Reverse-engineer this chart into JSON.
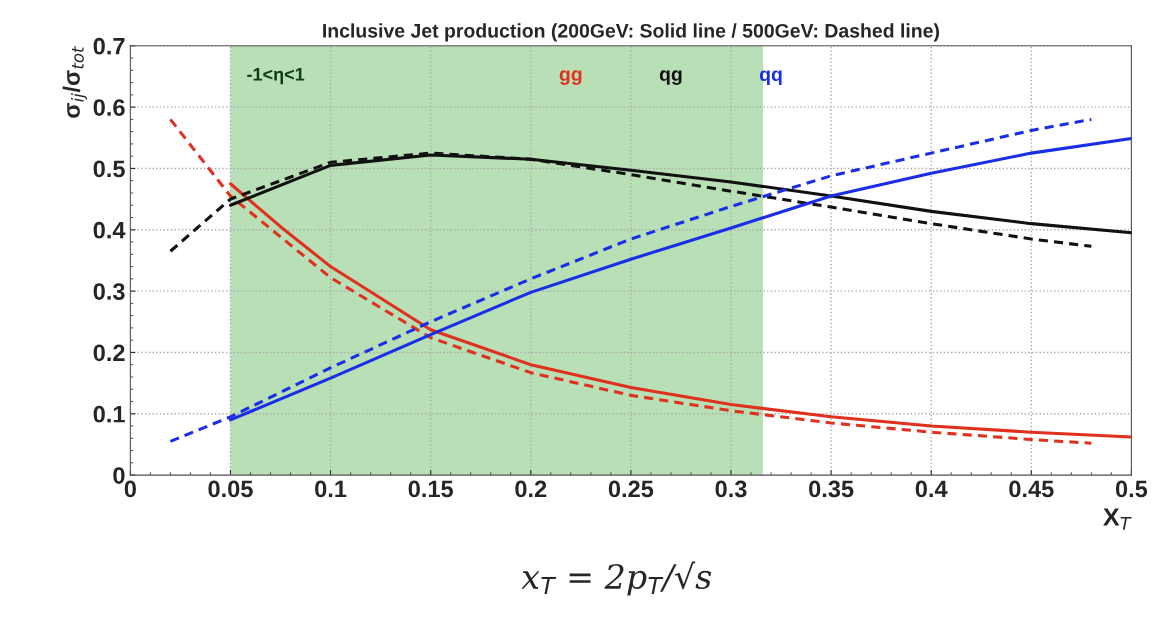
{
  "chart_data": {
    "type": "line",
    "title": "Inclusive Jet production (200GeV: Solid line / 500GeV: Dashed line)",
    "xlabel": "X$_{T}$",
    "ylabel": "σ$_{ij}$/σ$_{tot}$",
    "xlim": [
      0,
      0.5
    ],
    "ylim": [
      0,
      0.7
    ],
    "xticks": [
      0,
      0.05,
      0.1,
      0.15,
      0.2,
      0.25,
      0.3,
      0.35,
      0.4,
      0.45,
      0.5
    ],
    "yticks": [
      0,
      0.1,
      0.2,
      0.3,
      0.4,
      0.5,
      0.6,
      0.7
    ],
    "grid": true,
    "marker": "none",
    "bands": [
      {
        "axis": "x",
        "from": 0.05,
        "to": 0.316,
        "label": "-1<η<1",
        "color": "#b8dfb6"
      }
    ],
    "series": [
      {
        "name": "gg",
        "color": "#e0301e",
        "line_style": "solid",
        "x": [
          0.05,
          0.075,
          0.1,
          0.15,
          0.2,
          0.25,
          0.3,
          0.35,
          0.4,
          0.45,
          0.5
        ],
        "values": [
          0.475,
          0.405,
          0.34,
          0.237,
          0.18,
          0.143,
          0.115,
          0.095,
          0.08,
          0.07,
          0.062
        ]
      },
      {
        "color": "#e0301e",
        "line_style": "dashed",
        "x": [
          0.02,
          0.05,
          0.1,
          0.15,
          0.2,
          0.25,
          0.3,
          0.35,
          0.4,
          0.45,
          0.48
        ],
        "values": [
          0.58,
          0.455,
          0.322,
          0.224,
          0.167,
          0.13,
          0.105,
          0.085,
          0.07,
          0.058,
          0.052
        ]
      },
      {
        "name": "qg",
        "color": "#111111",
        "line_style": "solid",
        "x": [
          0.05,
          0.1,
          0.15,
          0.2,
          0.25,
          0.3,
          0.35,
          0.4,
          0.45,
          0.5
        ],
        "values": [
          0.44,
          0.505,
          0.522,
          0.515,
          0.497,
          0.478,
          0.455,
          0.43,
          0.41,
          0.395
        ]
      },
      {
        "color": "#111111",
        "line_style": "dashed",
        "x": [
          0.02,
          0.05,
          0.1,
          0.15,
          0.2,
          0.25,
          0.3,
          0.35,
          0.4,
          0.45,
          0.48
        ],
        "values": [
          0.365,
          0.45,
          0.51,
          0.525,
          0.515,
          0.49,
          0.463,
          0.437,
          0.41,
          0.385,
          0.373
        ]
      },
      {
        "name": "qq",
        "color": "#1a2ee8",
        "line_style": "solid",
        "x": [
          0.05,
          0.1,
          0.15,
          0.2,
          0.25,
          0.3,
          0.35,
          0.4,
          0.45,
          0.5
        ],
        "values": [
          0.09,
          0.158,
          0.229,
          0.298,
          0.352,
          0.403,
          0.455,
          0.492,
          0.525,
          0.549
        ]
      },
      {
        "color": "#1a2ee8",
        "line_style": "dashed",
        "x": [
          0.02,
          0.05,
          0.1,
          0.15,
          0.2,
          0.25,
          0.3,
          0.35,
          0.4,
          0.45,
          0.48
        ],
        "values": [
          0.055,
          0.095,
          0.175,
          0.25,
          0.32,
          0.385,
          0.438,
          0.488,
          0.525,
          0.562,
          0.58
        ]
      }
    ],
    "annotations": [
      "x$_{T}$ = 2p$_{T}$/√s"
    ]
  }
}
